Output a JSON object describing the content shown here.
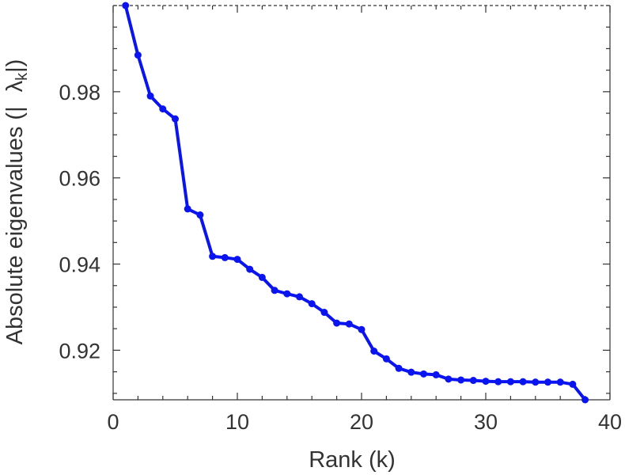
{
  "chart_data": {
    "type": "line",
    "xlabel": "Rank (k)",
    "ylabel": {
      "main": "Absolute eigenvalues (|",
      "symbol": "λ",
      "subscript": "k",
      "close": "|)"
    },
    "xlim": [
      0,
      40
    ],
    "ylim": [
      0.9085,
      1.0
    ],
    "xticks": [
      0,
      10,
      20,
      30,
      40
    ],
    "xtick_labels": [
      "0",
      "10",
      "20",
      "30",
      "40"
    ],
    "yticks": [
      0.92,
      0.94,
      0.96,
      0.98
    ],
    "ytick_labels": [
      "0.92",
      "0.94",
      "0.96",
      "0.98"
    ],
    "grid": false,
    "line_color": "#0a14f0",
    "series": [
      {
        "x": [
          1,
          2,
          3,
          4,
          5,
          6,
          7,
          8,
          9,
          10,
          11,
          12,
          13,
          14,
          15,
          16,
          17,
          18,
          19,
          20,
          21,
          22,
          23,
          24,
          25,
          26,
          27,
          28,
          29,
          30,
          31,
          32,
          33,
          34,
          35,
          36,
          37,
          38
        ],
        "values": [
          1.0,
          0.9885,
          0.979,
          0.976,
          0.9737,
          0.9528,
          0.9514,
          0.9418,
          0.9415,
          0.9411,
          0.9388,
          0.9369,
          0.9339,
          0.9331,
          0.9324,
          0.9308,
          0.9288,
          0.9263,
          0.9261,
          0.9248,
          0.9198,
          0.918,
          0.9158,
          0.9149,
          0.9145,
          0.9143,
          0.9133,
          0.9131,
          0.913,
          0.9128,
          0.9127,
          0.9127,
          0.9127,
          0.9126,
          0.9126,
          0.9126,
          0.9121,
          0.9085
        ]
      }
    ]
  }
}
